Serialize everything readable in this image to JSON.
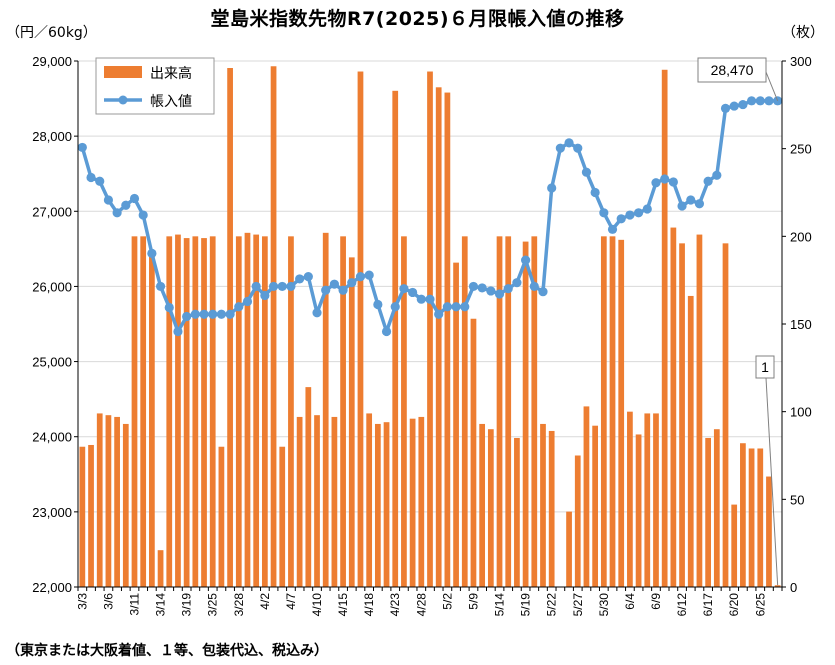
{
  "chart_data": {
    "type": "bar+line",
    "title": "堂島米指数先物R7(2025)６月限帳入値の推移",
    "left_axis_label": "（円／60kg）",
    "right_axis_label": "（枚）",
    "footnote": "（東京または大阪着値、１等、包装代込、税込み）",
    "left_ylim": [
      22000,
      29000
    ],
    "left_ticks": [
      "22,000",
      "23,000",
      "24,000",
      "25,000",
      "26,000",
      "27,000",
      "28,000",
      "29,000"
    ],
    "right_ylim": [
      0,
      300
    ],
    "right_ticks": [
      "0",
      "50",
      "100",
      "150",
      "200",
      "250",
      "300"
    ],
    "legend": {
      "bar": "出来高",
      "line": "帳入値"
    },
    "x_tick_labels": [
      "3/3",
      "3/6",
      "3/11",
      "3/14",
      "3/19",
      "3/25",
      "3/28",
      "4/2",
      "4/7",
      "4/10",
      "4/15",
      "4/18",
      "4/23",
      "4/28",
      "5/2",
      "5/9",
      "5/14",
      "5/19",
      "5/22",
      "5/27",
      "5/30",
      "6/4",
      "6/9",
      "6/12",
      "6/17",
      "6/20",
      "6/25"
    ],
    "x_tick_indices": [
      0,
      3,
      6,
      9,
      12,
      15,
      18,
      21,
      24,
      27,
      30,
      33,
      36,
      39,
      42,
      45,
      48,
      51,
      54,
      57,
      60,
      63,
      66,
      69,
      72,
      75,
      78
    ],
    "annotations": [
      {
        "text": "28,470",
        "point": "last_line"
      },
      {
        "text": "1",
        "point": "last_bar"
      }
    ],
    "volume": [
      80,
      81,
      99,
      98,
      97,
      93,
      200,
      200,
      189,
      21,
      200,
      201,
      199,
      200,
      199,
      200,
      80,
      296,
      200,
      202,
      201,
      200,
      297,
      80,
      200,
      97,
      114,
      98,
      202,
      97,
      200,
      188,
      294,
      99,
      93,
      94,
      283,
      200,
      96,
      97,
      294,
      285,
      282,
      185,
      200,
      153,
      93,
      90,
      200,
      200,
      85,
      197,
      200,
      93,
      89,
      0,
      43,
      75,
      103,
      92,
      200,
      200,
      198,
      100,
      87,
      99,
      99,
      295,
      205,
      196,
      166,
      201,
      85,
      90,
      196,
      47,
      82,
      79,
      79,
      63,
      1
    ],
    "settlement": [
      27850,
      27450,
      27400,
      27150,
      26980,
      27080,
      27170,
      26950,
      26440,
      26000,
      25720,
      25400,
      25600,
      25630,
      25630,
      25630,
      25630,
      25630,
      25730,
      25800,
      26000,
      25880,
      26000,
      26000,
      26000,
      26100,
      26130,
      25650,
      25950,
      26030,
      25950,
      26050,
      26130,
      26150,
      25760,
      25400,
      25730,
      25970,
      25920,
      25830,
      25830,
      25630,
      25730,
      25730,
      25730,
      26000,
      25980,
      25940,
      25900,
      25970,
      26050,
      26350,
      26000,
      25930,
      27310,
      27840,
      27910,
      27840,
      27520,
      27250,
      26980,
      26760,
      26900,
      26950,
      26980,
      27030,
      27380,
      27430,
      27390,
      27070,
      27150,
      27100,
      27400,
      27480,
      28370,
      28400,
      28420,
      28470,
      28470,
      28470,
      28470
    ]
  }
}
